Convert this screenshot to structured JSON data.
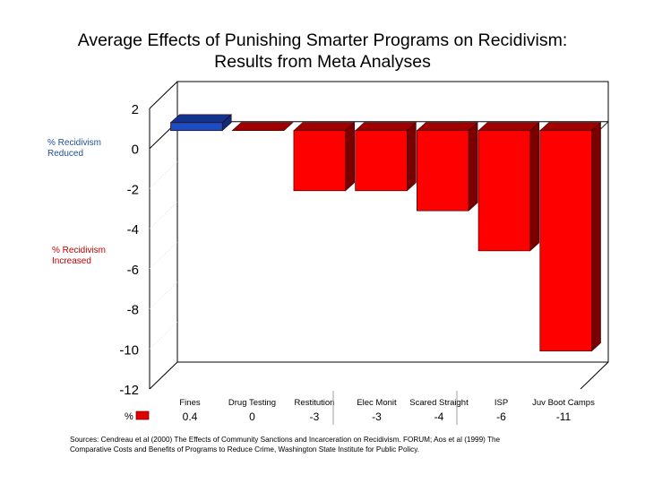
{
  "title_line1": "Average Effects of Punishing Smarter Programs on Recidivism:",
  "title_line2": "Results from Meta Analyses",
  "annotations": {
    "reduced": [
      "% Recidivism",
      "Reduced"
    ],
    "increased": [
      "% Recidivism",
      "Increased"
    ],
    "reduced_color": "#1f4e9c",
    "increased_color": "#c00000"
  },
  "table": {
    "row_label": "%",
    "legend_color": "#e00000"
  },
  "source_text_line1": "Sources: Cendreau et al (2000) The Effects of Community Sanctions and Incarceration on Recidivism. FORUM; Aos et al (1999) The",
  "source_text_line2": "Comparative Costs and Benefits of Programs to Reduce Crime, Washington State Institute for Public Policy.",
  "chart_data": {
    "type": "bar",
    "style": "3d-column",
    "title": "Average Effects of Punishing Smarter Programs on Recidivism: Results from Meta Analyses",
    "xlabel": "",
    "ylabel": "",
    "categories": [
      "Fines",
      "Drug Testing",
      "Restitution",
      "Elec Monit",
      "Scared Straight",
      "ISP",
      "Juv Boot Camps"
    ],
    "values": [
      0.4,
      0,
      -3,
      -3,
      -4,
      -6,
      -11
    ],
    "value_labels": [
      "0.4",
      "0",
      "-3",
      "-3",
      "-4",
      "-6",
      "-11"
    ],
    "ylim": [
      -12,
      2
    ],
    "yticks": [
      2,
      0,
      -2,
      -4,
      -6,
      -8,
      -10,
      -12
    ],
    "colors": {
      "positive": "#1a4fc4",
      "negative": "#ff0000"
    },
    "grid": false,
    "legend": "data-table-bottom"
  }
}
